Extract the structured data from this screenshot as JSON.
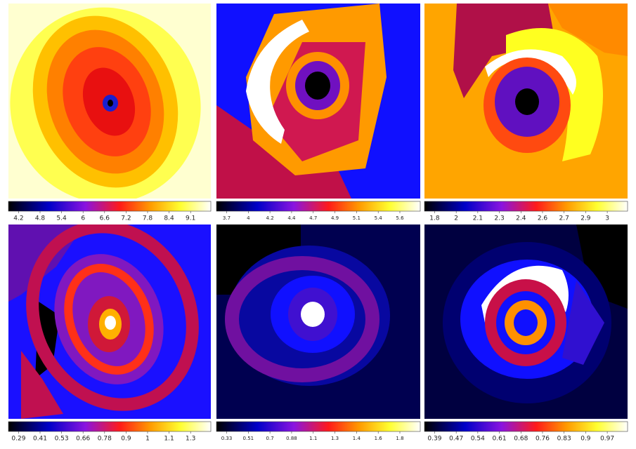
{
  "panels": [
    {
      "colorbar_ticks": [
        4.2,
        4.8,
        5.4,
        6,
        6.6,
        7.2,
        7.8,
        8.4,
        9.1
      ]
    },
    {
      "colorbar_ticks": [
        3.7,
        4,
        4.2,
        4.4,
        4.7,
        4.9,
        5.1,
        5.4,
        5.6
      ]
    },
    {
      "colorbar_ticks": [
        1.8,
        2,
        2.1,
        2.3,
        2.4,
        2.6,
        2.7,
        2.9,
        3
      ]
    },
    {
      "colorbar_ticks": [
        0.29,
        0.41,
        0.53,
        0.66,
        0.78,
        0.9,
        1,
        1.1,
        1.3
      ]
    },
    {
      "colorbar_ticks": [
        0.33,
        0.51,
        0.7,
        0.88,
        1.1,
        1.3,
        1.4,
        1.6,
        1.8
      ]
    },
    {
      "colorbar_ticks": [
        0.39,
        0.47,
        0.54,
        0.61,
        0.68,
        0.76,
        0.83,
        0.9,
        0.97
      ]
    }
  ]
}
